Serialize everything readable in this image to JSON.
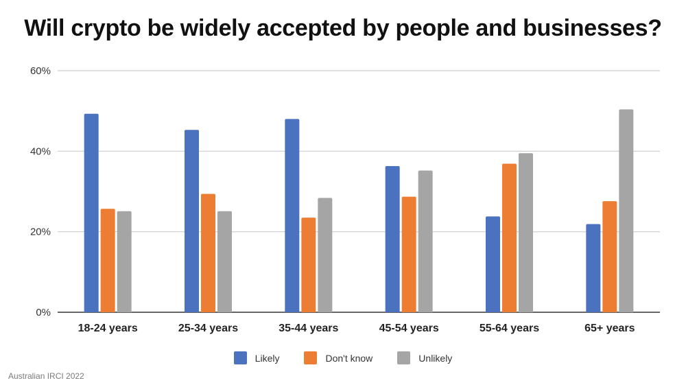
{
  "chart_data": {
    "type": "bar",
    "title": "Will crypto be widely accepted by people and businesses?",
    "categories": [
      "18-24 years",
      "25-34 years",
      "35-44 years",
      "45-54 years",
      "55-64 years",
      "65+ years"
    ],
    "series": [
      {
        "name": "Likely",
        "color": "#4a72bf",
        "values": [
          49.3,
          45.3,
          48.0,
          36.3,
          23.8,
          21.9
        ]
      },
      {
        "name": "Don't know",
        "color": "#ee7d34",
        "values": [
          25.7,
          29.4,
          23.5,
          28.7,
          36.9,
          27.6
        ]
      },
      {
        "name": "Unlikely",
        "color": "#a5a5a5",
        "values": [
          25.1,
          25.1,
          28.4,
          35.2,
          39.5,
          50.4
        ]
      }
    ],
    "ylim": [
      0,
      60
    ],
    "yticks": [
      0,
      20,
      40,
      60
    ],
    "ytick_labels": [
      "0%",
      "20%",
      "40%",
      "60%"
    ],
    "grid": true,
    "legend_position": "bottom"
  },
  "source": "Australian IRCI 2022"
}
